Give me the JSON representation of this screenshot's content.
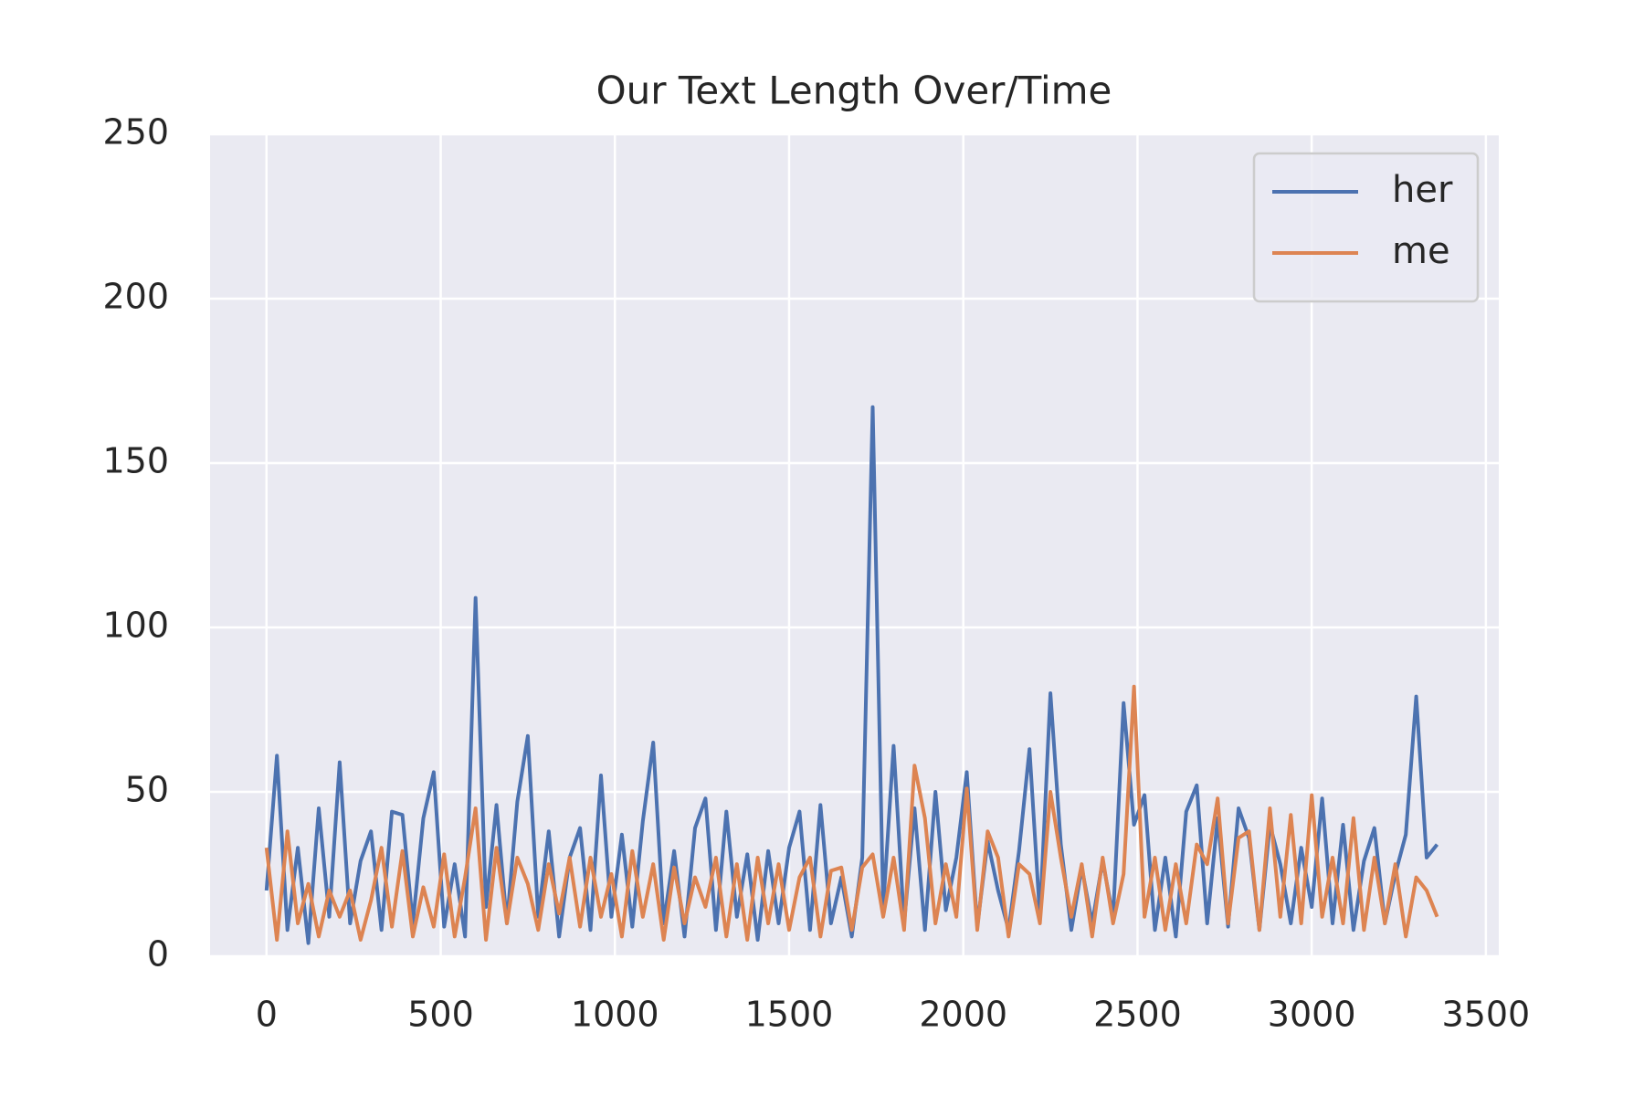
{
  "chart_data": {
    "type": "line",
    "title": "Our Text Length Over/Time",
    "x": [
      0,
      30,
      60,
      90,
      120,
      150,
      180,
      210,
      240,
      270,
      300,
      330,
      360,
      390,
      420,
      450,
      480,
      510,
      540,
      570,
      600,
      630,
      660,
      690,
      720,
      750,
      780,
      810,
      840,
      870,
      900,
      930,
      960,
      990,
      1020,
      1050,
      1080,
      1110,
      1140,
      1170,
      1200,
      1230,
      1260,
      1290,
      1320,
      1350,
      1380,
      1410,
      1440,
      1470,
      1500,
      1530,
      1560,
      1590,
      1620,
      1650,
      1680,
      1710,
      1740,
      1770,
      1800,
      1830,
      1860,
      1890,
      1920,
      1950,
      1980,
      2010,
      2040,
      2070,
      2100,
      2130,
      2160,
      2190,
      2220,
      2250,
      2280,
      2310,
      2340,
      2370,
      2400,
      2430,
      2460,
      2490,
      2520,
      2550,
      2580,
      2610,
      2640,
      2670,
      2700,
      2730,
      2760,
      2790,
      2820,
      2850,
      2880,
      2910,
      2940,
      2970,
      3000,
      3030,
      3060,
      3090,
      3120,
      3150,
      3180,
      3210,
      3240,
      3270,
      3300,
      3330,
      3360
    ],
    "series": [
      {
        "name": "her",
        "color": "#4c72b0",
        "values": [
          20,
          61,
          8,
          33,
          4,
          45,
          12,
          59,
          10,
          29,
          38,
          8,
          44,
          43,
          10,
          42,
          56,
          9,
          28,
          6,
          109,
          15,
          46,
          10,
          47,
          67,
          12,
          38,
          6,
          30,
          39,
          8,
          55,
          12,
          37,
          9,
          41,
          65,
          10,
          32,
          6,
          39,
          48,
          8,
          44,
          12,
          31,
          5,
          32,
          10,
          33,
          44,
          8,
          46,
          10,
          24,
          6,
          30,
          167,
          15,
          64,
          10,
          45,
          8,
          50,
          14,
          30,
          56,
          9,
          35,
          20,
          8,
          32,
          63,
          12,
          80,
          34,
          8,
          27,
          10,
          29,
          12,
          77,
          40,
          49,
          8,
          30,
          6,
          44,
          52,
          10,
          42,
          9,
          45,
          36,
          8,
          40,
          28,
          10,
          33,
          15,
          48,
          10,
          40,
          8,
          29,
          39,
          10,
          25,
          37,
          79,
          30,
          34
        ]
      },
      {
        "name": "me",
        "color": "#dd8452",
        "values": [
          33,
          5,
          38,
          10,
          22,
          6,
          20,
          12,
          20,
          5,
          17,
          33,
          9,
          32,
          6,
          21,
          9,
          31,
          6,
          24,
          45,
          5,
          33,
          10,
          30,
          22,
          8,
          28,
          13,
          30,
          9,
          30,
          12,
          25,
          6,
          32,
          12,
          28,
          5,
          27,
          10,
          24,
          15,
          30,
          6,
          28,
          5,
          30,
          10,
          28,
          8,
          24,
          30,
          6,
          26,
          27,
          8,
          27,
          31,
          12,
          30,
          8,
          58,
          42,
          10,
          28,
          12,
          51,
          8,
          38,
          30,
          6,
          28,
          25,
          10,
          50,
          30,
          12,
          28,
          6,
          30,
          10,
          25,
          82,
          12,
          30,
          8,
          28,
          10,
          34,
          28,
          48,
          10,
          36,
          38,
          8,
          45,
          12,
          43,
          10,
          49,
          12,
          30,
          10,
          42,
          8,
          30,
          10,
          28,
          6,
          24,
          20,
          12
        ]
      }
    ],
    "xlim": [
      -162,
      3537
    ],
    "ylim": [
      0,
      250
    ],
    "xticks": [
      0,
      500,
      1000,
      1500,
      2000,
      2500,
      3000,
      3500
    ],
    "yticks": [
      0,
      50,
      100,
      150,
      200,
      250
    ],
    "grid": true,
    "legend": "upper right"
  }
}
